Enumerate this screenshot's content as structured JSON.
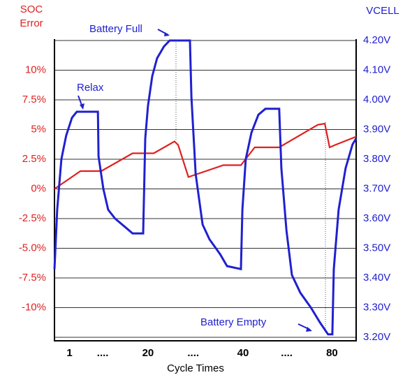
{
  "chart_data": {
    "type": "line",
    "ylabel": [
      "SOC",
      "Error"
    ],
    "y2label": "VCELL",
    "xlabel": "Cycle Times",
    "xlim": [
      0,
      100
    ],
    "xticks": [
      {
        "value": 5,
        "label": "1"
      },
      {
        "value": 16,
        "label": "...."
      },
      {
        "value": 31,
        "label": "20"
      },
      {
        "value": 46,
        "label": "...."
      },
      {
        "value": 62.5,
        "label": "40"
      },
      {
        "value": 77,
        "label": "...."
      },
      {
        "value": 92,
        "label": "80"
      }
    ],
    "ylim": [
      -12.5,
      12.5
    ],
    "yticks": [
      {
        "value": 10,
        "label": "10%"
      },
      {
        "value": 7.5,
        "label": "7.5%"
      },
      {
        "value": 5,
        "label": "5%"
      },
      {
        "value": 2.5,
        "label": "2.5%"
      },
      {
        "value": 0,
        "label": "0%"
      },
      {
        "value": -2.5,
        "label": "-2.5%"
      },
      {
        "value": -5,
        "label": "-5.0%"
      },
      {
        "value": -7.5,
        "label": "-7.5%"
      },
      {
        "value": -10,
        "label": "-10%"
      }
    ],
    "y2lim": [
      3.2,
      4.2
    ],
    "y2ticks": [
      {
        "value": 4.2,
        "label": "4.20V"
      },
      {
        "value": 4.1,
        "label": "4.10V"
      },
      {
        "value": 4.0,
        "label": "4.00V"
      },
      {
        "value": 3.9,
        "label": "3.90V"
      },
      {
        "value": 3.8,
        "label": "3.80V"
      },
      {
        "value": 3.7,
        "label": "3.70V"
      },
      {
        "value": 3.6,
        "label": "3.60V"
      },
      {
        "value": 3.5,
        "label": "3.50V"
      },
      {
        "value": 3.4,
        "label": "3.40V"
      },
      {
        "value": 3.3,
        "label": "3.30V"
      },
      {
        "value": 3.2,
        "label": "3.20V"
      }
    ],
    "grid": true,
    "series": [
      {
        "color": "#e02020",
        "axis": "y",
        "x": [
          0,
          8.6,
          15.5,
          25.9,
          32.9,
          39.8,
          41,
          44.4,
          56,
          61.8,
          66.4,
          74.5,
          87.3,
          89.6,
          91.2,
          93,
          100
        ],
        "values": [
          0,
          1.5,
          1.5,
          3,
          3,
          4,
          3.7,
          1,
          2,
          2,
          3.5,
          3.5,
          5.4,
          5.5,
          3.5,
          3.7,
          4.4
        ]
      },
      {
        "color": "#2020d0",
        "axis": "y2",
        "x": [
          0,
          0.9,
          2.3,
          3.9,
          5.8,
          7.4,
          14.4,
          14.6,
          16.2,
          17.8,
          20.1,
          23.6,
          25.9,
          29.4,
          30.1,
          31,
          32.4,
          34,
          36.3,
          38.2,
          44.9,
          45.4,
          46.8,
          49.1,
          51.4,
          54.9,
          57.2,
          61.8,
          62.3,
          63.4,
          65.3,
          67.6,
          69.9,
          74.5,
          75.2,
          76.9,
          78.7,
          81.5,
          85,
          88,
          90.7,
          92.1,
          92.6,
          94.2,
          96.5,
          98.8,
          100
        ],
        "values": [
          3.43,
          3.63,
          3.8,
          3.88,
          3.94,
          3.96,
          3.96,
          3.81,
          3.7,
          3.63,
          3.6,
          3.57,
          3.55,
          3.55,
          3.87,
          3.98,
          4.08,
          4.14,
          4.18,
          4.2,
          4.2,
          4.01,
          3.75,
          3.58,
          3.53,
          3.48,
          3.44,
          3.43,
          3.63,
          3.8,
          3.89,
          3.95,
          3.97,
          3.97,
          3.77,
          3.56,
          3.41,
          3.35,
          3.3,
          3.25,
          3.21,
          3.21,
          3.43,
          3.63,
          3.77,
          3.85,
          3.87
        ]
      }
    ],
    "annotations": [
      "Battery Full",
      "Relax",
      "Battery Empty"
    ]
  }
}
